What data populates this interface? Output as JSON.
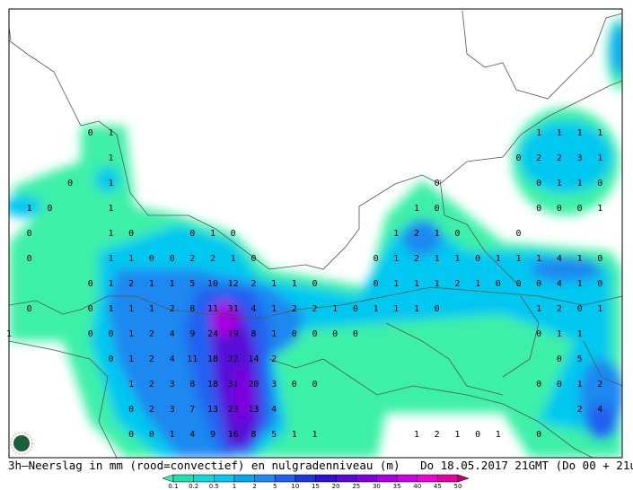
{
  "caption": "3h–Neerslag in mm (rood=convectief) en nulgradenniveau (m)   Do 18.05.2017 21GMT (Do 00 + 21u)",
  "colorbar": {
    "labels": [
      "0.1",
      "0.2",
      "0.5",
      "1",
      "2",
      "5",
      "10",
      "15",
      "20",
      "25",
      "30",
      "35",
      "40",
      "45",
      "50"
    ],
    "colors": [
      "#3cf0a8",
      "#20e0b0",
      "#10d8d8",
      "#00c8f0",
      "#00a8f0",
      "#1c88f0",
      "#2060f0",
      "#1838e0",
      "#3010d8",
      "#5808d8",
      "#8000e0",
      "#a800e0",
      "#d000e0",
      "#f000d8",
      "#e800a0",
      "#c80060"
    ]
  },
  "grid_values": [
    [
      null,
      null,
      null,
      null,
      0,
      1,
      null,
      null,
      null,
      null,
      null,
      null,
      null,
      null,
      null,
      null,
      null,
      null,
      null,
      null,
      null,
      null,
      null,
      null,
      null,
      null,
      1,
      1,
      1,
      1
    ],
    [
      null,
      null,
      null,
      null,
      null,
      1,
      null,
      null,
      null,
      null,
      null,
      null,
      null,
      null,
      null,
      null,
      null,
      null,
      null,
      null,
      null,
      null,
      null,
      null,
      null,
      0,
      2,
      2,
      3,
      1
    ],
    [
      null,
      null,
      null,
      0,
      null,
      1,
      null,
      null,
      null,
      null,
      null,
      null,
      null,
      null,
      null,
      null,
      null,
      null,
      null,
      null,
      null,
      0,
      null,
      null,
      null,
      null,
      0,
      1,
      1,
      0
    ],
    [
      null,
      1,
      0,
      null,
      null,
      1,
      null,
      null,
      null,
      null,
      null,
      null,
      null,
      null,
      null,
      null,
      null,
      null,
      null,
      null,
      1,
      0,
      null,
      null,
      null,
      null,
      0,
      0,
      0,
      1
    ],
    [
      null,
      0,
      null,
      null,
      null,
      1,
      0,
      null,
      null,
      0,
      1,
      0,
      null,
      null,
      null,
      null,
      null,
      null,
      null,
      1,
      2,
      1,
      0,
      null,
      null,
      0,
      null,
      null,
      null,
      null
    ],
    [
      null,
      0,
      null,
      null,
      null,
      1,
      1,
      0,
      0,
      2,
      2,
      1,
      0,
      null,
      null,
      null,
      null,
      null,
      0,
      1,
      2,
      1,
      1,
      0,
      1,
      1,
      1,
      4,
      1,
      0
    ],
    [
      null,
      null,
      null,
      null,
      0,
      1,
      2,
      1,
      1,
      5,
      10,
      12,
      2,
      1,
      1,
      0,
      null,
      null,
      0,
      1,
      1,
      1,
      2,
      1,
      0,
      0,
      0,
      4,
      1,
      0
    ],
    [
      null,
      0,
      null,
      null,
      0,
      1,
      1,
      1,
      2,
      8,
      11,
      31,
      4,
      1,
      2,
      2,
      1,
      0,
      1,
      1,
      1,
      0,
      null,
      null,
      null,
      null,
      1,
      2,
      0,
      1
    ],
    [
      1,
      null,
      null,
      null,
      0,
      0,
      1,
      2,
      4,
      9,
      24,
      19,
      8,
      1,
      0,
      0,
      0,
      0,
      null,
      null,
      null,
      null,
      null,
      null,
      null,
      null,
      0,
      1,
      1,
      null
    ],
    [
      null,
      null,
      null,
      null,
      null,
      0,
      1,
      2,
      4,
      11,
      18,
      22,
      14,
      2,
      null,
      null,
      null,
      null,
      null,
      null,
      null,
      null,
      null,
      null,
      null,
      null,
      null,
      0,
      5,
      null
    ],
    [
      null,
      null,
      null,
      null,
      null,
      null,
      1,
      2,
      3,
      8,
      18,
      31,
      20,
      3,
      0,
      0,
      null,
      null,
      null,
      null,
      null,
      null,
      null,
      null,
      null,
      null,
      0,
      0,
      1,
      2
    ],
    [
      null,
      null,
      null,
      null,
      null,
      null,
      0,
      2,
      3,
      7,
      13,
      23,
      13,
      4,
      null,
      null,
      null,
      null,
      null,
      null,
      null,
      null,
      null,
      null,
      null,
      null,
      null,
      null,
      2,
      4
    ],
    [
      null,
      null,
      null,
      null,
      null,
      null,
      0,
      0,
      1,
      4,
      9,
      16,
      8,
      5,
      1,
      1,
      null,
      null,
      null,
      null,
      1,
      2,
      1,
      0,
      1,
      null,
      0,
      null,
      null,
      null
    ]
  ]
}
